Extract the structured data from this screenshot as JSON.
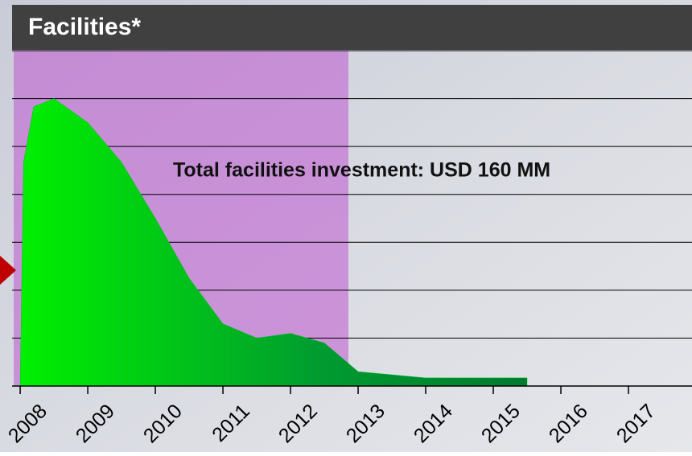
{
  "chart_data": {
    "type": "area",
    "title": "Facilities*",
    "annotation": "Total facilities investment: USD 160 MM",
    "x": [
      2008,
      2008.05,
      2008.2,
      2008.5,
      2009,
      2009.5,
      2010,
      2010.5,
      2011,
      2011.5,
      2012,
      2012.5,
      2013,
      2014,
      2015,
      2015.5
    ],
    "values": [
      0,
      4.67,
      5.83,
      6.0,
      5.5,
      4.67,
      3.5,
      2.25,
      1.3,
      1.0,
      1.1,
      0.9,
      0.3,
      0.17,
      0.17,
      0.17
    ],
    "color": "#00c020",
    "xlim": [
      2007.88,
      2017.94
    ],
    "xticks": [
      2008,
      2009,
      2010,
      2011,
      2012,
      2013,
      2014,
      2015,
      2016,
      2017
    ],
    "ylim": [
      0,
      7
    ],
    "yticks": [
      0,
      1,
      2,
      3,
      4,
      5,
      6,
      7
    ],
    "grid": true
  }
}
